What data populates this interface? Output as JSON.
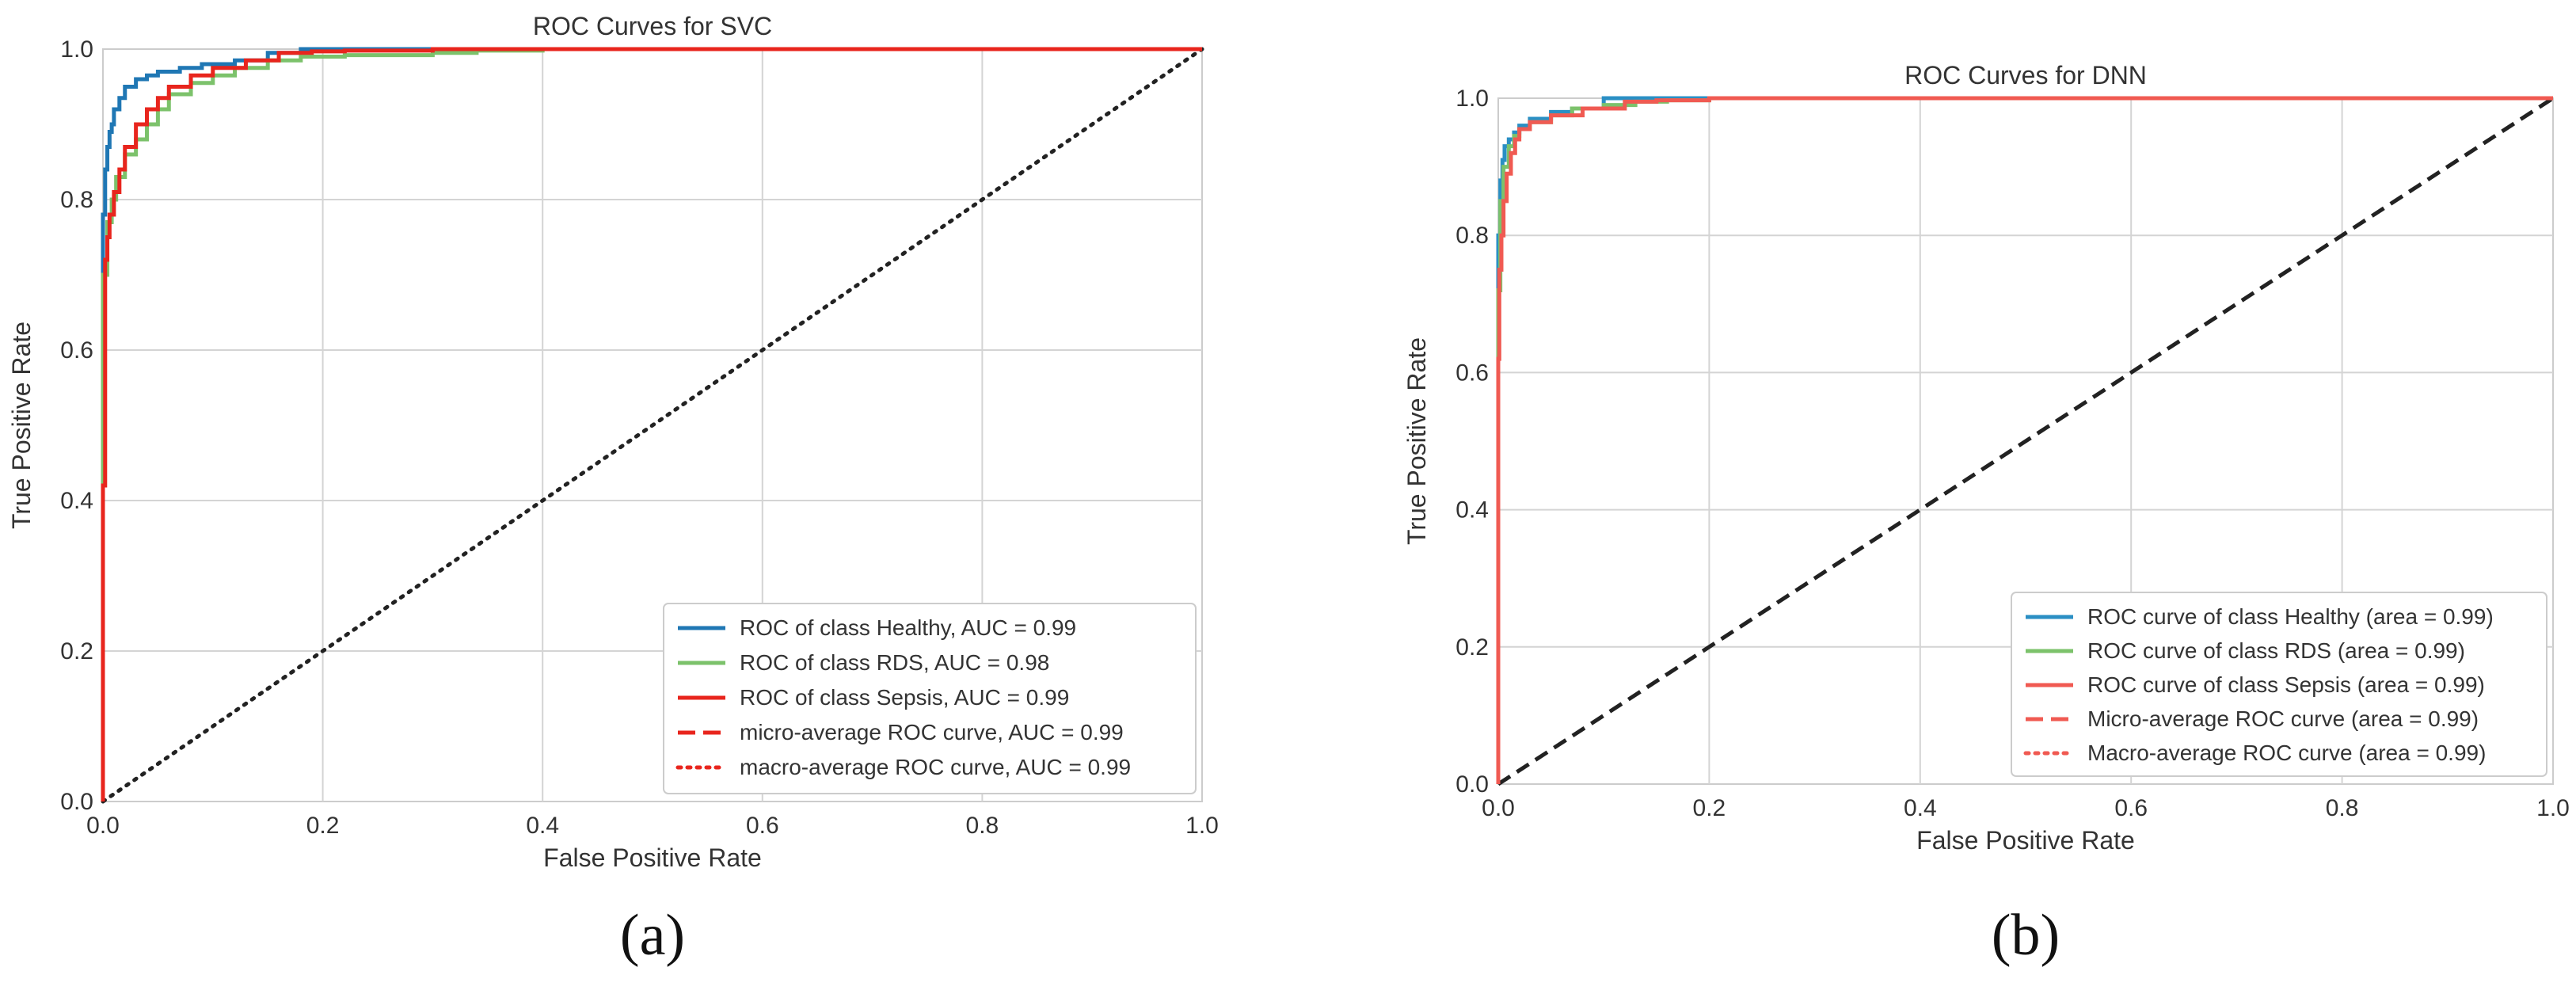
{
  "colors": {
    "healthy": "#1f77b4",
    "rds": "#7cc26b",
    "sepsis": "#e8251d",
    "sepsis_b": "#f05a52",
    "healthy_b": "#2a8fc4",
    "plot_bg": "#ffffff",
    "grid": "#d4d4d4",
    "diagonal": "#222222"
  },
  "chart_data": [
    {
      "type": "line",
      "panel_label": "(a)",
      "title": "ROC Curves for SVC",
      "xlabel": "False Positive Rate",
      "ylabel": "True Positive Rate",
      "xlim": [
        0,
        1
      ],
      "ylim": [
        0,
        1
      ],
      "xticks": [
        "0.0",
        "0.2",
        "0.4",
        "0.6",
        "0.8",
        "1.0"
      ],
      "yticks": [
        "0.0",
        "0.2",
        "0.4",
        "0.6",
        "0.8",
        "1.0"
      ],
      "grid": true,
      "legend_position": "lower-right",
      "diagonal_style": "dotted",
      "series": [
        {
          "name": "ROC of class Healthy, AUC = 0.99",
          "color_key": "healthy",
          "dash": "solid",
          "x": [
            0,
            0.002,
            0.004,
            0.006,
            0.008,
            0.01,
            0.015,
            0.02,
            0.03,
            0.04,
            0.05,
            0.07,
            0.09,
            0.12,
            0.15,
            0.18,
            0.2,
            0.4,
            0.6,
            0.8,
            1.0
          ],
          "y": [
            0,
            0.78,
            0.84,
            0.87,
            0.89,
            0.9,
            0.92,
            0.935,
            0.95,
            0.96,
            0.965,
            0.97,
            0.975,
            0.98,
            0.985,
            0.995,
            1.0,
            1.0,
            1.0,
            1.0,
            1.0
          ]
        },
        {
          "name": "ROC of class RDS, AUC = 0.98",
          "color_key": "rds",
          "dash": "solid",
          "x": [
            0,
            0.004,
            0.008,
            0.012,
            0.02,
            0.03,
            0.04,
            0.05,
            0.06,
            0.08,
            0.1,
            0.12,
            0.15,
            0.18,
            0.22,
            0.3,
            0.34,
            0.4,
            0.6,
            0.8,
            1.0
          ],
          "y": [
            0,
            0.7,
            0.77,
            0.8,
            0.83,
            0.86,
            0.88,
            0.9,
            0.92,
            0.94,
            0.955,
            0.965,
            0.975,
            0.985,
            0.99,
            0.992,
            0.995,
            0.998,
            1.0,
            1.0,
            1.0
          ]
        },
        {
          "name": "ROC of class Sepsis, AUC = 0.99",
          "color_key": "sepsis",
          "dash": "solid",
          "x": [
            0,
            0.002,
            0.004,
            0.006,
            0.01,
            0.015,
            0.02,
            0.03,
            0.04,
            0.05,
            0.06,
            0.08,
            0.1,
            0.13,
            0.16,
            0.19,
            0.22,
            0.3,
            0.4,
            0.6,
            0.8,
            1.0
          ],
          "y": [
            0,
            0.42,
            0.72,
            0.75,
            0.78,
            0.81,
            0.84,
            0.87,
            0.9,
            0.92,
            0.935,
            0.95,
            0.965,
            0.975,
            0.985,
            0.995,
            0.997,
            0.998,
            1.0,
            1.0,
            1.0,
            1.0
          ]
        },
        {
          "name": "micro-average ROC curve, AUC = 0.99",
          "color_key": "sepsis",
          "dash": "dashed",
          "legend_only": true,
          "x": [],
          "y": []
        },
        {
          "name": "macro-average ROC curve, AUC = 0.99",
          "color_key": "sepsis",
          "dash": "dotted",
          "legend_only": true,
          "x": [],
          "y": []
        }
      ]
    },
    {
      "type": "line",
      "panel_label": "(b)",
      "title": "ROC Curves for DNN",
      "xlabel": "False Positive Rate",
      "ylabel": "True Positive Rate",
      "xlim": [
        0,
        1
      ],
      "ylim": [
        0,
        1
      ],
      "xticks": [
        "0.0",
        "0.2",
        "0.4",
        "0.6",
        "0.8",
        "1.0"
      ],
      "yticks": [
        "0.0",
        "0.2",
        "0.4",
        "0.6",
        "0.8",
        "1.0"
      ],
      "grid": true,
      "legend_position": "lower-right",
      "diagonal_style": "dashed",
      "series": [
        {
          "name": "ROC curve of class Healthy (area = 0.99)",
          "color_key": "healthy_b",
          "dash": "solid",
          "x": [
            0,
            0.002,
            0.004,
            0.006,
            0.01,
            0.015,
            0.02,
            0.03,
            0.05,
            0.07,
            0.1,
            0.14,
            0.2,
            0.4,
            0.6,
            0.8,
            1.0
          ],
          "y": [
            0,
            0.8,
            0.88,
            0.91,
            0.93,
            0.94,
            0.95,
            0.96,
            0.97,
            0.98,
            0.985,
            1.0,
            1.0,
            1.0,
            1.0,
            1.0,
            1.0
          ]
        },
        {
          "name": "ROC curve of class RDS (area = 0.99)",
          "color_key": "rds",
          "dash": "solid",
          "x": [
            0,
            0.002,
            0.005,
            0.01,
            0.015,
            0.02,
            0.03,
            0.05,
            0.07,
            0.1,
            0.13,
            0.16,
            0.2,
            0.35,
            0.6,
            0.8,
            1.0
          ],
          "y": [
            0,
            0.72,
            0.85,
            0.9,
            0.93,
            0.945,
            0.955,
            0.965,
            0.975,
            0.985,
            0.99,
            0.995,
            0.997,
            1.0,
            1.0,
            1.0,
            1.0
          ]
        },
        {
          "name": "ROC curve of class Sepsis (area = 0.99)",
          "color_key": "sepsis_b",
          "dash": "solid",
          "x": [
            0,
            0.001,
            0.003,
            0.005,
            0.008,
            0.012,
            0.016,
            0.02,
            0.03,
            0.05,
            0.08,
            0.12,
            0.15,
            0.2,
            0.35,
            0.6,
            0.8,
            1.0
          ],
          "y": [
            0,
            0.62,
            0.75,
            0.8,
            0.85,
            0.89,
            0.92,
            0.94,
            0.955,
            0.965,
            0.975,
            0.985,
            0.995,
            0.997,
            1.0,
            1.0,
            1.0,
            1.0
          ]
        },
        {
          "name": "Micro-average ROC curve (area = 0.99)",
          "color_key": "sepsis_b",
          "dash": "dashed",
          "legend_only": true,
          "x": [],
          "y": []
        },
        {
          "name": "Macro-average ROC curve (area = 0.99)",
          "color_key": "sepsis_b",
          "dash": "dotted",
          "legend_only": true,
          "x": [],
          "y": []
        }
      ]
    }
  ]
}
